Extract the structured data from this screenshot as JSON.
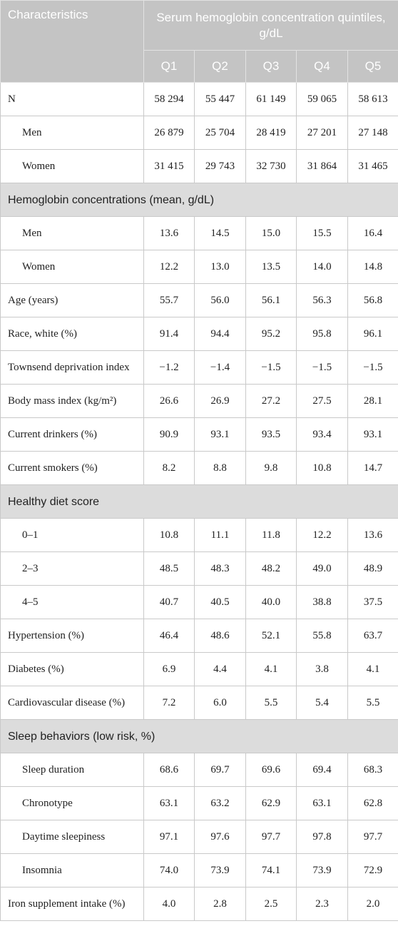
{
  "header": {
    "characteristics": "Characteristics",
    "group": "Serum hemoglobin concentration quintiles, g/dL",
    "columns": [
      "Q1",
      "Q2",
      "Q3",
      "Q4",
      "Q5"
    ]
  },
  "body": [
    {
      "label": "N",
      "values": [
        "58 294",
        "55 447",
        "61 149",
        "59 065",
        "58 613"
      ],
      "subrows": [
        {
          "label": "Men",
          "values": [
            "26 879",
            "25 704",
            "28 419",
            "27 201",
            "27 148"
          ]
        },
        {
          "label": "Women",
          "values": [
            "31 415",
            "29 743",
            "32 730",
            "31 864",
            "31 465"
          ]
        }
      ]
    },
    {
      "heading": "Hemoglobin concentrations (mean, g/dL)",
      "rows": [
        {
          "label": "Men",
          "values": [
            "13.6",
            "14.5",
            "15.0",
            "15.5",
            "16.4"
          ]
        },
        {
          "label": "Women",
          "values": [
            "12.2",
            "13.0",
            "13.5",
            "14.0",
            "14.8"
          ]
        }
      ]
    },
    {
      "label": "Age (years)",
      "values": [
        "55.7",
        "56.0",
        "56.1",
        "56.3",
        "56.8"
      ]
    },
    {
      "label": "Race, white (%)",
      "values": [
        "91.4",
        "94.4",
        "95.2",
        "95.8",
        "96.1"
      ]
    },
    {
      "label": "Townsend deprivation index",
      "values": [
        "−1.2",
        "−1.4",
        "−1.5",
        "−1.5",
        "−1.5"
      ]
    },
    {
      "label": "Body mass index (kg/m²)",
      "values": [
        "26.6",
        "26.9",
        "27.2",
        "27.5",
        "28.1"
      ]
    },
    {
      "label": "Current drinkers (%)",
      "values": [
        "90.9",
        "93.1",
        "93.5",
        "93.4",
        "93.1"
      ]
    },
    {
      "label": "Current smokers (%)",
      "values": [
        "8.2",
        "8.8",
        "9.8",
        "10.8",
        "14.7"
      ]
    },
    {
      "heading": "Healthy diet score",
      "rows": [
        {
          "label": "0–1",
          "values": [
            "10.8",
            "11.1",
            "11.8",
            "12.2",
            "13.6"
          ]
        },
        {
          "label": "2–3",
          "values": [
            "48.5",
            "48.3",
            "48.2",
            "49.0",
            "48.9"
          ]
        },
        {
          "label": "4–5",
          "values": [
            "40.7",
            "40.5",
            "40.0",
            "38.8",
            "37.5"
          ]
        }
      ]
    },
    {
      "label": "Hypertension (%)",
      "values": [
        "46.4",
        "48.6",
        "52.1",
        "55.8",
        "63.7"
      ]
    },
    {
      "label": "Diabetes (%)",
      "values": [
        "6.9",
        "4.4",
        "4.1",
        "3.8",
        "4.1"
      ]
    },
    {
      "label": "Cardiovascular disease (%)",
      "values": [
        "7.2",
        "6.0",
        "5.5",
        "5.4",
        "5.5"
      ]
    },
    {
      "heading": "Sleep behaviors (low risk, %)",
      "rows": [
        {
          "label": "Sleep duration",
          "values": [
            "68.6",
            "69.7",
            "69.6",
            "69.4",
            "68.3"
          ]
        },
        {
          "label": "Chronotype",
          "values": [
            "63.1",
            "63.2",
            "62.9",
            "63.1",
            "62.8"
          ]
        },
        {
          "label": "Daytime sleepiness",
          "values": [
            "97.1",
            "97.6",
            "97.7",
            "97.8",
            "97.7"
          ]
        },
        {
          "label": "Insomnia",
          "values": [
            "74.0",
            "73.9",
            "74.1",
            "73.9",
            "72.9"
          ]
        }
      ]
    },
    {
      "label": "Iron supplement intake (%)",
      "values": [
        "4.0",
        "2.8",
        "2.5",
        "2.3",
        "2.0"
      ]
    }
  ]
}
